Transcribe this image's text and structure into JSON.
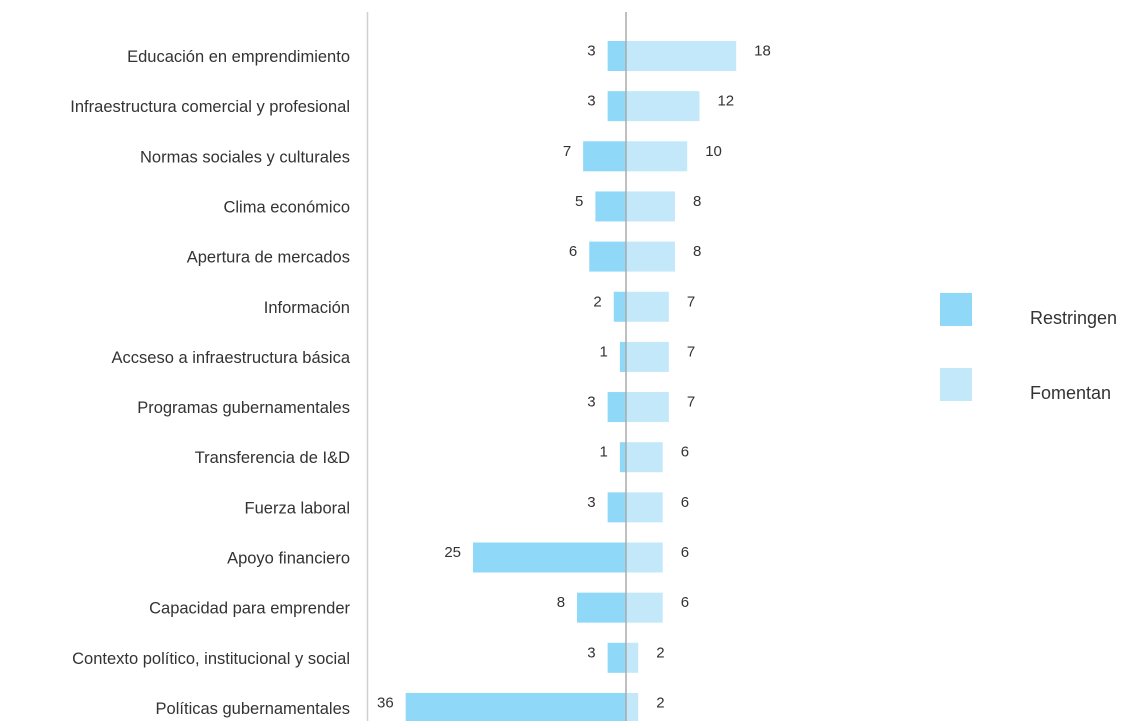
{
  "chart_data": {
    "type": "bar",
    "orientation": "horizontal-diverging",
    "categories": [
      "Educación en emprendimiento",
      "Infraestructura comercial y profesional",
      "Normas sociales y culturales",
      "Clima económico",
      "Apertura de mercados",
      "Información",
      "Accseso a infraestructura básica",
      "Programas gubernamentales",
      "Transferencia de I&D",
      "Fuerza laboral",
      "Apoyo financiero",
      "Capacidad para emprender",
      "Contexto político, institucional y social",
      "Políticas gubernamentales"
    ],
    "series": [
      {
        "name": "Restringen",
        "color": "#8fd8f7",
        "direction": "left",
        "values": [
          3,
          3,
          7,
          5,
          6,
          2,
          1,
          3,
          1,
          3,
          25,
          8,
          3,
          36
        ]
      },
      {
        "name": "Fomentan",
        "color": "#c2e8fa",
        "direction": "right",
        "values": [
          18,
          12,
          10,
          8,
          8,
          7,
          7,
          7,
          6,
          6,
          6,
          6,
          2,
          2
        ]
      }
    ],
    "legend_position": "right",
    "grid": false
  }
}
